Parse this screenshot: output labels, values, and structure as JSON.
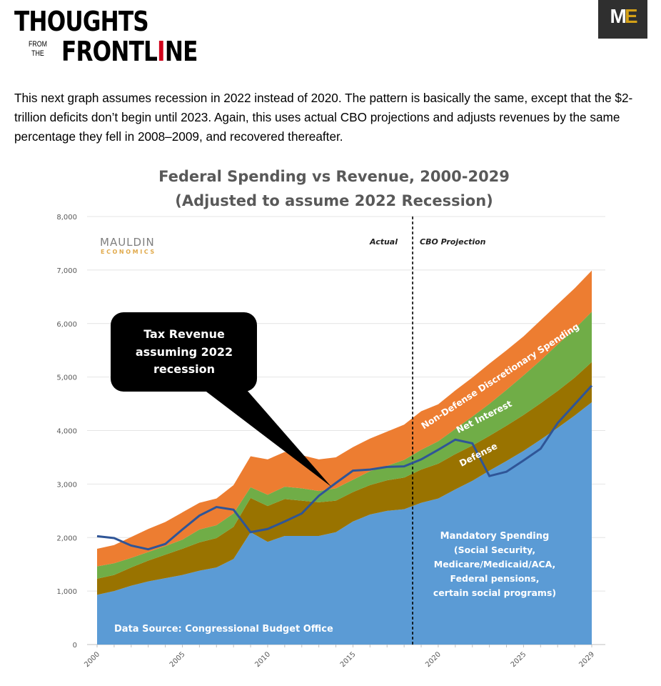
{
  "header": {
    "logo_line1": "THOUGHTS",
    "logo_from": "FROM",
    "logo_the": "THE",
    "logo_frontl": "FRONTL",
    "logo_i": "I",
    "logo_ne": "NE",
    "brand_m": "M",
    "brand_e": "E"
  },
  "intro": "This next graph assumes recession in 2022 instead of 2020. The pattern is basically the same, except that the $2-trillion deficits don’t begin until 2023. Again, this uses actual CBO projections and adjusts revenues by the same percentage they fell in 2008–2009, and recovered thereafter.",
  "chart_data": {
    "type": "area",
    "title": "Federal Spending vs Revenue, 2000-2029",
    "subtitle": "(Adjusted to assume 2022 Recession)",
    "xlabel": "",
    "ylabel": "",
    "ylim": [
      0,
      8000
    ],
    "yticks": [
      "0",
      "1,000",
      "2,000",
      "3,000",
      "4,000",
      "5,000",
      "6,000",
      "7,000",
      "8,000"
    ],
    "xticks": [
      "2000",
      "2005",
      "2010",
      "2015",
      "2020",
      "2025",
      "2029"
    ],
    "x": [
      2000,
      2001,
      2002,
      2003,
      2004,
      2005,
      2006,
      2007,
      2008,
      2009,
      2010,
      2011,
      2012,
      2013,
      2014,
      2015,
      2016,
      2017,
      2018,
      2019,
      2020,
      2021,
      2022,
      2023,
      2024,
      2025,
      2026,
      2027,
      2028,
      2029
    ],
    "stacked_series": [
      {
        "name": "Mandatory Spending",
        "color": "#5b9bd5",
        "values": [
          930,
          1000,
          1100,
          1180,
          1240,
          1300,
          1380,
          1440,
          1600,
          2100,
          1920,
          2030,
          2030,
          2030,
          2100,
          2300,
          2430,
          2500,
          2530,
          2650,
          2730,
          2900,
          3060,
          3250,
          3430,
          3620,
          3830,
          4050,
          4280,
          4530
        ]
      },
      {
        "name": "Defense",
        "color": "#997300",
        "values": [
          300,
          300,
          340,
          390,
          440,
          490,
          530,
          550,
          600,
          640,
          670,
          690,
          660,
          630,
          590,
          550,
          550,
          570,
          590,
          620,
          650,
          660,
          660,
          650,
          660,
          670,
          680,
          690,
          710,
          750
        ]
      },
      {
        "name": "Net Interest",
        "color": "#70ad47",
        "values": [
          230,
          220,
          180,
          160,
          160,
          170,
          240,
          240,
          250,
          200,
          210,
          230,
          230,
          210,
          230,
          230,
          260,
          270,
          330,
          370,
          420,
          470,
          540,
          600,
          670,
          740,
          800,
          870,
          910,
          940
        ]
      },
      {
        "name": "Non-Defense Discretionary Spending",
        "color": "#ed7d31",
        "values": [
          330,
          340,
          390,
          430,
          450,
          510,
          500,
          500,
          530,
          580,
          660,
          650,
          620,
          590,
          580,
          610,
          610,
          640,
          660,
          720,
          690,
          720,
          730,
          750,
          740,
          730,
          750,
          750,
          760,
          770
        ]
      }
    ],
    "line_series": {
      "name": "Tax Revenue",
      "color": "#2f5597",
      "values": [
        2025,
        1990,
        1850,
        1780,
        1880,
        2150,
        2410,
        2570,
        2520,
        2100,
        2160,
        2300,
        2450,
        2780,
        3020,
        3250,
        3270,
        3320,
        3330,
        3460,
        3640,
        3830,
        3760,
        3150,
        3230,
        3440,
        3660,
        4140,
        4490,
        4840
      ]
    },
    "divider_year": 2018.5,
    "annotations": {
      "actual": "Actual",
      "projection": "CBO Projection",
      "callout": [
        "Tax Revenue",
        "assuming 2022",
        "recession"
      ],
      "source": "Data Source: Congressional Budget Office",
      "mandatory": [
        "Mandatory Spending",
        "(Social Security,",
        "Medicare/Medicaid/ACA,",
        "Federal pensions,",
        "certain social programs)"
      ],
      "defense": "Defense",
      "interest": "Net Interest",
      "nondefense": "Non-Defense Discretionary Spending",
      "watermark_top": "MAULDIN",
      "watermark_bottom": "ECONOMICS"
    },
    "grid": true,
    "legend": "none"
  }
}
